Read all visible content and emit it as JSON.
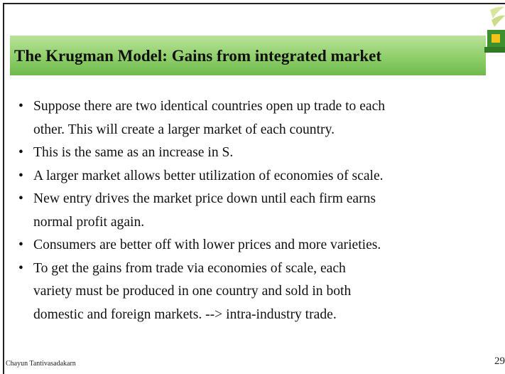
{
  "header": {
    "title": "The Krugman Model: Gains from integrated market"
  },
  "bullets": [
    [
      "Suppose there are two identical countries open up trade to each",
      "other.  This will create a larger market of each country."
    ],
    [
      "This is the same as an increase in S."
    ],
    [
      "A larger market allows better utilization of economies of scale."
    ],
    [
      "New entry drives the market price down until each firm earns",
      "normal profit again."
    ],
    [
      "Consumers are better off with lower prices and more varieties."
    ],
    [
      "To get the gains from trade via economies of scale, each",
      "variety must be produced in one country and sold in both",
      "domestic and foreign markets.  --> intra-industry trade."
    ]
  ],
  "footer": {
    "author": "Chayun Tantivasadakarn",
    "page": "29"
  }
}
